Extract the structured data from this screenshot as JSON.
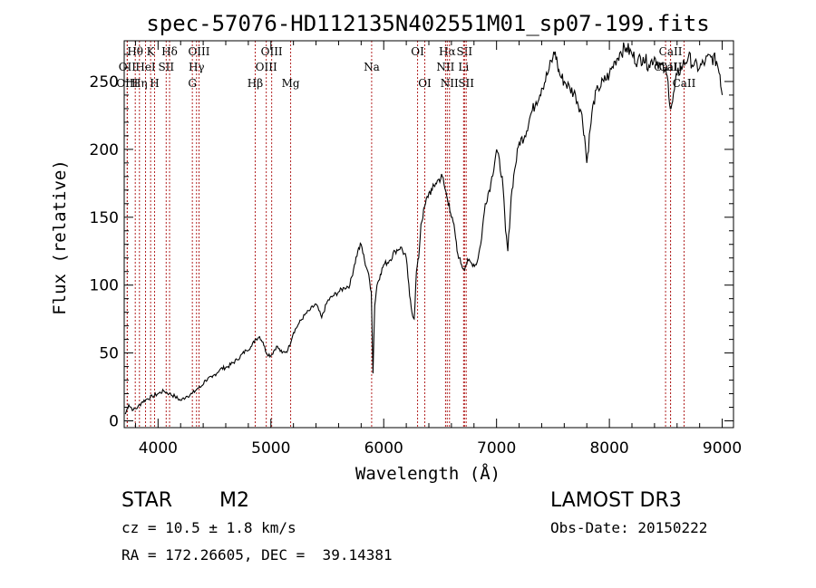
{
  "colors": {
    "spectrum": "#000000",
    "lines": "#b22222",
    "axes": "#000000"
  },
  "chart_data": {
    "type": "line",
    "title": "spec-57076-HD112135N402551M01_sp07-199.fits",
    "xlabel": "Wavelength (Å)",
    "ylabel": "Flux (relative)",
    "xlim": [
      3700,
      9100
    ],
    "ylim": [
      -5,
      280
    ],
    "xticks": [
      4000,
      5000,
      6000,
      7000,
      8000,
      9000
    ],
    "yticks": [
      0,
      50,
      100,
      150,
      200,
      250
    ],
    "series": [
      {
        "name": "flux",
        "x": [
          3710,
          3740,
          3780,
          3820,
          3860,
          3900,
          3950,
          4000,
          4050,
          4100,
          4150,
          4200,
          4250,
          4300,
          4330,
          4350,
          4380,
          4420,
          4480,
          4550,
          4620,
          4700,
          4780,
          4830,
          4860,
          4900,
          4930,
          4960,
          5000,
          5050,
          5100,
          5150,
          5200,
          5250,
          5300,
          5350,
          5400,
          5450,
          5500,
          5550,
          5600,
          5650,
          5700,
          5740,
          5770,
          5800,
          5830,
          5860,
          5890,
          5905,
          5920,
          5940,
          5970,
          6000,
          6050,
          6100,
          6150,
          6200,
          6230,
          6250,
          6270,
          6290,
          6310,
          6330,
          6370,
          6400,
          6430,
          6460,
          6490,
          6520,
          6540,
          6560,
          6580,
          6600,
          6630,
          6650,
          6670,
          6690,
          6710,
          6730,
          6750,
          6780,
          6820,
          6860,
          6900,
          6950,
          7000,
          7050,
          7080,
          7100,
          7130,
          7160,
          7200,
          7250,
          7300,
          7350,
          7400,
          7450,
          7500,
          7520,
          7540,
          7560,
          7600,
          7650,
          7700,
          7750,
          7780,
          7800,
          7830,
          7860,
          7900,
          7950,
          8000,
          8050,
          8100,
          8150,
          8200,
          8250,
          8300,
          8350,
          8400,
          8450,
          8490,
          8520,
          8540,
          8560,
          8600,
          8650,
          8700,
          8750,
          8800,
          8850,
          8900,
          8950,
          8980,
          9000
        ],
        "values": [
          5,
          12,
          8,
          10,
          14,
          16,
          18,
          20,
          22,
          20,
          18,
          15,
          18,
          20,
          22,
          24,
          25,
          30,
          32,
          38,
          40,
          45,
          52,
          55,
          60,
          62,
          58,
          50,
          48,
          55,
          50,
          52,
          65,
          72,
          78,
          82,
          86,
          76,
          88,
          92,
          95,
          98,
          100,
          115,
          125,
          130,
          118,
          110,
          95,
          35,
          85,
          100,
          108,
          115,
          118,
          125,
          128,
          120,
          92,
          80,
          75,
          110,
          120,
          145,
          160,
          168,
          170,
          175,
          178,
          180,
          172,
          165,
          160,
          150,
          140,
          125,
          120,
          115,
          112,
          115,
          118,
          116,
          115,
          130,
          160,
          175,
          200,
          180,
          140,
          125,
          165,
          185,
          205,
          210,
          225,
          235,
          245,
          255,
          268,
          272,
          262,
          255,
          250,
          245,
          240,
          228,
          210,
          190,
          215,
          235,
          245,
          250,
          255,
          265,
          272,
          275,
          270,
          265,
          268,
          262,
          268,
          262,
          258,
          250,
          230,
          235,
          255,
          262,
          268,
          262,
          260,
          265,
          268,
          265,
          255,
          240
        ]
      }
    ],
    "lines": [
      {
        "name": "Hθ",
        "wl": 3798,
        "row": 0
      },
      {
        "name": "OII",
        "wl": 3727,
        "row": 1
      },
      {
        "name": "OIII",
        "wl": 3727,
        "row": 2
      },
      {
        "name": "K",
        "wl": 3934,
        "row": 0
      },
      {
        "name": "HeI",
        "wl": 3889,
        "row": 1
      },
      {
        "name": "Hη",
        "wl": 3835,
        "row": 2
      },
      {
        "name": "Hδ",
        "wl": 4102,
        "row": 0
      },
      {
        "name": "SII",
        "wl": 4072,
        "row": 1
      },
      {
        "name": "H",
        "wl": 3969,
        "row": 2
      },
      {
        "name": "OIII",
        "wl": 4363,
        "row": 0
      },
      {
        "name": "Hγ",
        "wl": 4341,
        "row": 1
      },
      {
        "name": "G",
        "wl": 4304,
        "row": 2
      },
      {
        "name": "OIII",
        "wl": 5007,
        "row": 0
      },
      {
        "name": "OIII",
        "wl": 4959,
        "row": 1
      },
      {
        "name": "Hβ",
        "wl": 4861,
        "row": 2
      },
      {
        "name": "Mg",
        "wl": 5175,
        "row": 2
      },
      {
        "name": "Na",
        "wl": 5893,
        "row": 1
      },
      {
        "name": "OI",
        "wl": 6300,
        "row": 0
      },
      {
        "name": "OI",
        "wl": 6364,
        "row": 2
      },
      {
        "name": "Hα",
        "wl": 6563,
        "row": 0
      },
      {
        "name": "SII",
        "wl": 6716,
        "row": 0
      },
      {
        "name": "NII",
        "wl": 6548,
        "row": 1
      },
      {
        "name": "Li",
        "wl": 6708,
        "row": 1
      },
      {
        "name": "NII",
        "wl": 6583,
        "row": 2
      },
      {
        "name": "SII",
        "wl": 6731,
        "row": 2
      },
      {
        "name": "CaII",
        "wl": 8542,
        "row": 0
      },
      {
        "name": "CaII",
        "wl": 8498,
        "row": 1
      },
      {
        "name": "CaII",
        "wl": 8542,
        "row": 1
      },
      {
        "name": "CaII",
        "wl": 8662,
        "row": 2
      }
    ]
  },
  "info": {
    "class": "STAR",
    "subclass": "M2",
    "survey": "LAMOST DR3",
    "cz": "cz = 10.5 ± 1.8 km/s",
    "obs_date": "Obs-Date: 20150222",
    "coords": "RA = 172.26605, DEC =  39.14381"
  }
}
